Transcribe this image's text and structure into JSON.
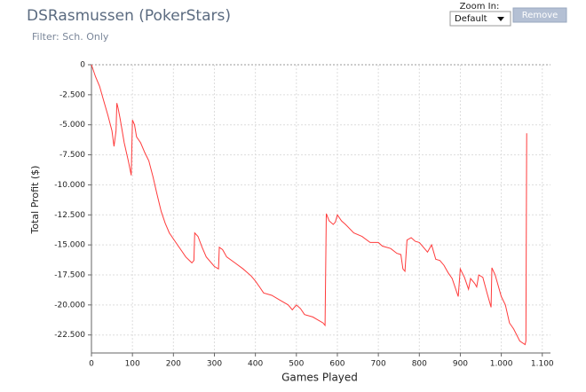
{
  "header": {
    "title": "DSRasmussen (PokerStars)",
    "filter": "Filter: Sch. Only",
    "zoom_label": "Zoom In:",
    "zoom_value": "Default",
    "button": "Remove"
  },
  "chart_data": {
    "type": "line",
    "x_label": "Games Played",
    "y_label": "Total Profit ($)",
    "color": "#ff3b3b",
    "grid": true,
    "x": [
      0,
      10,
      20,
      30,
      40,
      50,
      55,
      60,
      62,
      65,
      70,
      80,
      90,
      97,
      100,
      105,
      110,
      120,
      130,
      140,
      150,
      160,
      170,
      180,
      190,
      200,
      210,
      220,
      230,
      245,
      250,
      252,
      260,
      270,
      280,
      300,
      310,
      312,
      320,
      330,
      350,
      370,
      390,
      400,
      410,
      420,
      440,
      460,
      480,
      490,
      500,
      510,
      520,
      540,
      555,
      565,
      570,
      573,
      580,
      590,
      595,
      600,
      610,
      620,
      640,
      660,
      680,
      700,
      710,
      730,
      745,
      755,
      760,
      765,
      770,
      780,
      790,
      800,
      810,
      820,
      830,
      840,
      850,
      860,
      870,
      880,
      895,
      900,
      910,
      920,
      925,
      935,
      940,
      945,
      955,
      965,
      975,
      977,
      985,
      1000,
      1010,
      1020,
      1030,
      1045,
      1058,
      1060,
      1062
    ],
    "values": [
      0,
      -1000,
      -1800,
      -3000,
      -4200,
      -5500,
      -6800,
      -5500,
      -3200,
      -3600,
      -4500,
      -6500,
      -8000,
      -9200,
      -4600,
      -5000,
      -6000,
      -6500,
      -7300,
      -8000,
      -9300,
      -10800,
      -12200,
      -13200,
      -14000,
      -14500,
      -15000,
      -15500,
      -16000,
      -16500,
      -16300,
      -14000,
      -14300,
      -15200,
      -16000,
      -16800,
      -17000,
      -15200,
      -15400,
      -16000,
      -16500,
      -17000,
      -17600,
      -18000,
      -18500,
      -19000,
      -19200,
      -19600,
      -20000,
      -20400,
      -20000,
      -20300,
      -20800,
      -21000,
      -21300,
      -21500,
      -21700,
      -12400,
      -13000,
      -13300,
      -13100,
      -12500,
      -13000,
      -13300,
      -14000,
      -14300,
      -14800,
      -14800,
      -15100,
      -15300,
      -15700,
      -15800,
      -17000,
      -17200,
      -14600,
      -14400,
      -14700,
      -14800,
      -15200,
      -15600,
      -15000,
      -16200,
      -16300,
      -16700,
      -17300,
      -17800,
      -19300,
      -17000,
      -17700,
      -18700,
      -17800,
      -18200,
      -18500,
      -17500,
      -17700,
      -19000,
      -20200,
      -16900,
      -17500,
      -19300,
      -20000,
      -21500,
      -22000,
      -23000,
      -23300,
      -23000,
      -5700
    ],
    "xlim": [
      0,
      1120
    ],
    "ylim": [
      -24000,
      0
    ],
    "xticks": [
      0,
      100,
      200,
      300,
      400,
      500,
      600,
      700,
      800,
      900,
      {
        "value": 1000,
        "label": "1.000"
      },
      {
        "value": 1100,
        "label": "1.100"
      }
    ],
    "yticks": [
      0,
      {
        "value": -2500,
        "label": "-2.500"
      },
      {
        "value": -5000,
        "label": "-5.000"
      },
      {
        "value": -7500,
        "label": "-7.500"
      },
      {
        "value": -10000,
        "label": "-10.000"
      },
      {
        "value": -12500,
        "label": "-12.500"
      },
      {
        "value": -15000,
        "label": "-15.000"
      },
      {
        "value": -17500,
        "label": "-17.500"
      },
      {
        "value": -20000,
        "label": "-20.000"
      },
      {
        "value": -22500,
        "label": "-22.500"
      }
    ]
  }
}
